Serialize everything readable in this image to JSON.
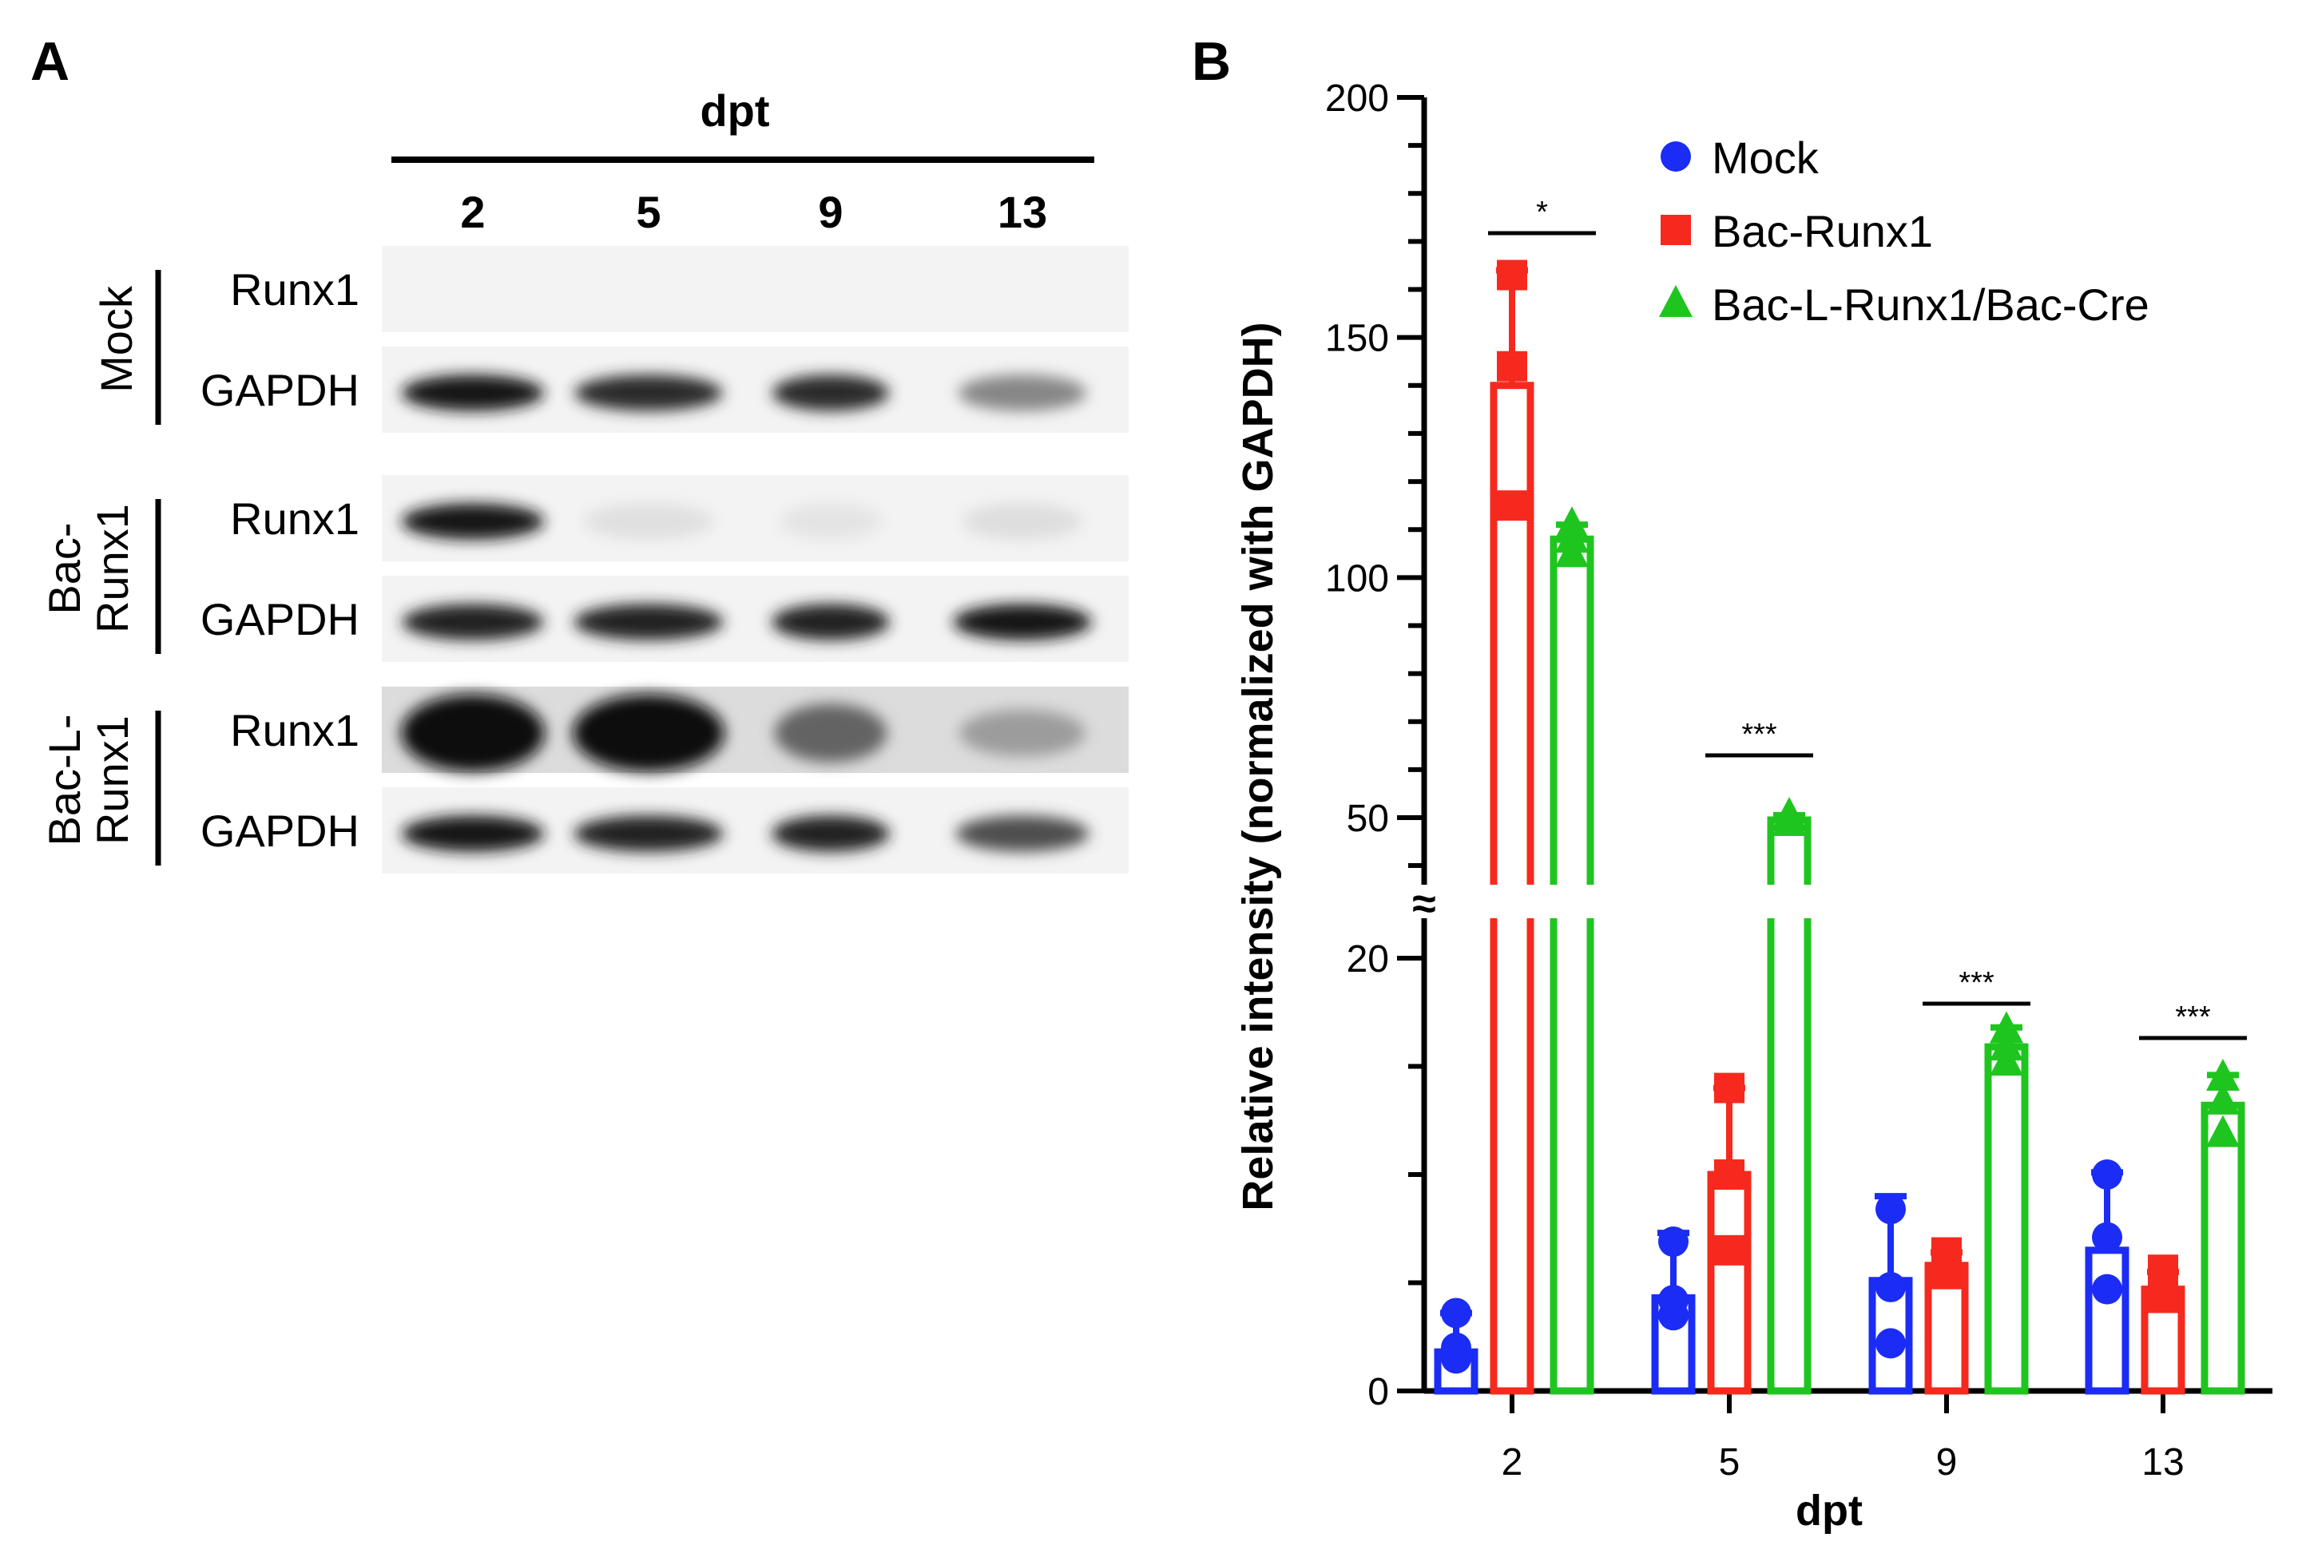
{
  "panel_a": {
    "letter": "A",
    "header": "dpt",
    "lanes": [
      "2",
      "5",
      "9",
      "13"
    ],
    "groups": [
      {
        "name_lines": [
          "Mock"
        ],
        "rows": [
          "Runx1",
          "GAPDH"
        ],
        "intensity": {
          "Runx1": [
            0,
            0,
            0,
            0
          ],
          "GAPDH": [
            0.95,
            0.85,
            0.85,
            0.45
          ]
        }
      },
      {
        "name_lines": [
          "Bac-",
          "Runx1"
        ],
        "rows": [
          "Runx1",
          "GAPDH"
        ],
        "intensity": {
          "Runx1": [
            0.95,
            0.05,
            0.03,
            0.06
          ],
          "GAPDH": [
            0.9,
            0.9,
            0.9,
            0.95
          ]
        }
      },
      {
        "name_lines": [
          "Bac-L-",
          "Runx1"
        ],
        "rows": [
          "Runx1",
          "GAPDH"
        ],
        "intensity": {
          "Runx1": [
            1.0,
            1.0,
            0.6,
            0.35
          ],
          "GAPDH": [
            0.95,
            0.9,
            0.9,
            0.7
          ]
        }
      }
    ]
  },
  "panel_b": {
    "letter": "B"
  },
  "chart_data": {
    "type": "bar",
    "title": "",
    "xlabel": "dpt",
    "ylabel": "Relative intensity (normalized with GAPDH)",
    "categories": [
      "2",
      "5",
      "9",
      "13"
    ],
    "y_axis_break": [
      22,
      45
    ],
    "ylim_lower": [
      0,
      22
    ],
    "ylim_upper": [
      45,
      200
    ],
    "yticks_lower": [
      "0",
      "20"
    ],
    "yticks_upper": [
      "50",
      "100",
      "150",
      "200"
    ],
    "legend_position": "top-right",
    "series": [
      {
        "name": "Mock",
        "color": "#1b2cf5",
        "marker": "circle",
        "values": [
          1.8,
          4.3,
          5.1,
          6.5
        ],
        "errors": [
          1.8,
          3.0,
          3.9,
          3.6
        ],
        "points": [
          [
            1.5,
            2.0,
            3.6
          ],
          [
            3.5,
            4.2,
            6.9
          ],
          [
            2.2,
            4.8,
            8.4
          ],
          [
            4.7,
            7.1,
            10.0
          ]
        ]
      },
      {
        "name": "Bac-Runx1",
        "color": "#f5291e",
        "marker": "square",
        "values": [
          140,
          10.0,
          5.8,
          4.7
        ],
        "errors": [
          24,
          4.0,
          0.6,
          0.8
        ],
        "points": [
          [
            115,
            144,
            163
          ],
          [
            6.5,
            10.0,
            14.0
          ],
          [
            5.4,
            6.0,
            6.4
          ],
          [
            4.3,
            4.6,
            5.6
          ]
        ]
      },
      {
        "name": "Bac-L-Runx1/Bac-Cre",
        "color": "#1fc51f",
        "marker": "triangle",
        "values": [
          108,
          49.5,
          15.9,
          13.2
        ],
        "errors": [
          3,
          1.0,
          0.9,
          1.4
        ],
        "points": [
          [
            105,
            108,
            111
          ],
          [
            49,
            50,
            50.5
          ],
          [
            15.2,
            15.9,
            16.7
          ],
          [
            11.9,
            13.4,
            14.5
          ]
        ]
      }
    ],
    "significance": [
      {
        "category": "2",
        "label": "*"
      },
      {
        "category": "5",
        "label": "***"
      },
      {
        "category": "9",
        "label": "***"
      },
      {
        "category": "13",
        "label": "***"
      }
    ],
    "break_symbol": "≈"
  }
}
